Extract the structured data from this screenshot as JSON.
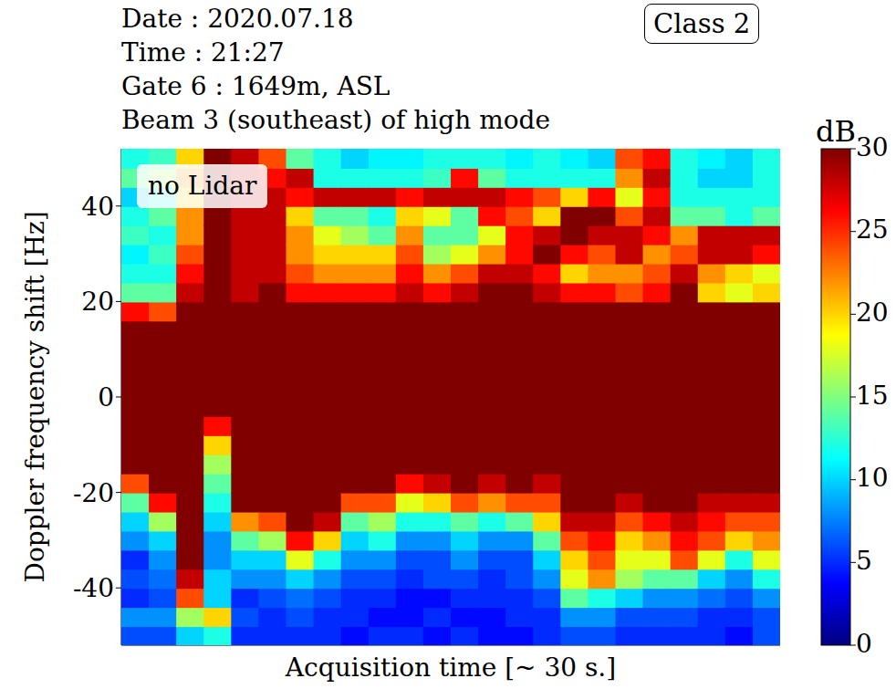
{
  "chart_data": {
    "type": "heatmap",
    "title_lines": [
      "Date : 2020.07.18",
      "Time : 21:27",
      "Gate 6 : 1649m, ASL",
      "Beam 3 (southeast) of high mode"
    ],
    "badge": "Class 2",
    "annotation": "no Lidar",
    "x_label": "Acquisition time [~ 30 s.]",
    "y_label": "Doppler frequency shift [Hz]",
    "xlim": [
      0,
      30
    ],
    "ylim": [
      -52,
      52
    ],
    "yticks": [
      -40,
      -20,
      0,
      20,
      40
    ],
    "tick_labels": "y",
    "x": [
      0.625,
      1.875,
      3.125,
      4.375,
      5.625,
      6.875,
      8.125,
      9.375,
      10.625,
      11.875,
      13.125,
      14.375,
      15.625,
      16.875,
      18.125,
      19.375,
      20.625,
      21.875,
      23.125,
      24.375,
      25.625,
      26.875,
      28.125,
      29.375
    ],
    "y": [
      -50,
      -46,
      -42,
      -38,
      -34,
      -30,
      -26,
      -22,
      -18,
      -14,
      -10,
      -6,
      -2,
      2,
      6,
      10,
      14,
      18,
      22,
      26,
      30,
      34,
      38,
      42,
      46,
      50
    ],
    "cells": [
      [
        6,
        8,
        5,
        6,
        5,
        8,
        10,
        14,
        24,
        30,
        30,
        30,
        30,
        30,
        30,
        30,
        30,
        26,
        14,
        12,
        11,
        13,
        12,
        10,
        14,
        12
      ],
      [
        6,
        8,
        6,
        7,
        8,
        10,
        16,
        26,
        30,
        30,
        30,
        30,
        30,
        30,
        30,
        30,
        30,
        24,
        14,
        12,
        13,
        12,
        14,
        12,
        16,
        13
      ],
      [
        10,
        16,
        24,
        28,
        30,
        30,
        30,
        30,
        30,
        30,
        30,
        30,
        30,
        30,
        30,
        30,
        30,
        30,
        28,
        26,
        24,
        22,
        22,
        20,
        22,
        20
      ],
      [
        12,
        20,
        10,
        10,
        8,
        8,
        10,
        12,
        14,
        16,
        20,
        26,
        30,
        30,
        30,
        30,
        30,
        30,
        30,
        30,
        30,
        30,
        30,
        30,
        30,
        30
      ],
      [
        5,
        6,
        5,
        8,
        10,
        14,
        22,
        30,
        30,
        30,
        30,
        30,
        30,
        30,
        30,
        30,
        30,
        30,
        28,
        28,
        28,
        28,
        28,
        28,
        28,
        28
      ],
      [
        5,
        5,
        6,
        8,
        10,
        16,
        24,
        30,
        30,
        30,
        30,
        30,
        30,
        30,
        30,
        30,
        30,
        30,
        30,
        28,
        28,
        28,
        28,
        28,
        26,
        24
      ],
      [
        5,
        6,
        7,
        10,
        18,
        26,
        30,
        30,
        30,
        30,
        30,
        30,
        30,
        30,
        30,
        30,
        30,
        30,
        26,
        24,
        22,
        22,
        20,
        26,
        28,
        14
      ],
      [
        5,
        5,
        6,
        8,
        12,
        20,
        28,
        30,
        30,
        30,
        30,
        30,
        30,
        30,
        30,
        30,
        30,
        30,
        26,
        22,
        20,
        18,
        14,
        28,
        12,
        12
      ],
      [
        4,
        5,
        5,
        6,
        8,
        10,
        14,
        24,
        30,
        30,
        30,
        30,
        30,
        30,
        30,
        30,
        30,
        30,
        26,
        22,
        20,
        16,
        14,
        28,
        12,
        10
      ],
      [
        5,
        4,
        5,
        6,
        8,
        12,
        16,
        24,
        30,
        30,
        30,
        30,
        30,
        30,
        30,
        30,
        30,
        30,
        26,
        22,
        20,
        14,
        12,
        28,
        12,
        11
      ],
      [
        5,
        4,
        4,
        5,
        6,
        8,
        12,
        18,
        26,
        30,
        30,
        30,
        30,
        30,
        30,
        30,
        30,
        30,
        28,
        26,
        24,
        22,
        20,
        26,
        12,
        11
      ],
      [
        4,
        5,
        4,
        6,
        6,
        8,
        12,
        20,
        28,
        30,
        30,
        30,
        30,
        30,
        30,
        30,
        30,
        30,
        26,
        22,
        16,
        14,
        18,
        28,
        13,
        12
      ],
      [
        5,
        4,
        5,
        6,
        8,
        10,
        14,
        24,
        30,
        30,
        30,
        30,
        30,
        30,
        30,
        30,
        30,
        30,
        28,
        24,
        18,
        14,
        14,
        28,
        26,
        12
      ],
      [
        4,
        4,
        5,
        5,
        6,
        8,
        12,
        22,
        28,
        30,
        30,
        30,
        30,
        30,
        30,
        30,
        30,
        30,
        30,
        28,
        22,
        18,
        26,
        28,
        14,
        12
      ],
      [
        4,
        5,
        5,
        6,
        6,
        8,
        14,
        24,
        30,
        30,
        30,
        30,
        30,
        30,
        30,
        30,
        30,
        30,
        30,
        28,
        26,
        26,
        24,
        26,
        12,
        11
      ],
      [
        5,
        5,
        6,
        8,
        10,
        14,
        20,
        24,
        28,
        30,
        30,
        30,
        30,
        30,
        30,
        30,
        30,
        30,
        28,
        26,
        30,
        28,
        20,
        24,
        12,
        12
      ],
      [
        6,
        8,
        14,
        18,
        20,
        24,
        28,
        30,
        30,
        30,
        30,
        30,
        30,
        30,
        30,
        30,
        30,
        30,
        26,
        20,
        26,
        30,
        30,
        20,
        12,
        11
      ],
      [
        6,
        8,
        12,
        22,
        24,
        26,
        28,
        30,
        30,
        30,
        30,
        30,
        30,
        30,
        30,
        30,
        30,
        30,
        26,
        22,
        24,
        28,
        30,
        26,
        12,
        10
      ],
      [
        5,
        6,
        10,
        16,
        18,
        20,
        24,
        28,
        30,
        30,
        30,
        30,
        30,
        30,
        30,
        30,
        30,
        30,
        24,
        22,
        28,
        28,
        24,
        18,
        22,
        24
      ],
      [
        5,
        6,
        8,
        14,
        18,
        22,
        26,
        30,
        30,
        30,
        30,
        30,
        30,
        30,
        30,
        30,
        30,
        30,
        26,
        24,
        22,
        26,
        28,
        26,
        28,
        26
      ],
      [
        5,
        6,
        8,
        14,
        24,
        26,
        28,
        30,
        30,
        30,
        30,
        30,
        30,
        30,
        30,
        30,
        30,
        30,
        30,
        28,
        24,
        22,
        14,
        12,
        12,
        12
      ],
      [
        5,
        5,
        7,
        10,
        18,
        24,
        26,
        28,
        30,
        30,
        30,
        30,
        30,
        30,
        30,
        30,
        30,
        30,
        20,
        22,
        28,
        28,
        14,
        12,
        10,
        11
      ],
      [
        4,
        5,
        6,
        8,
        12,
        20,
        24,
        28,
        30,
        30,
        30,
        30,
        30,
        30,
        30,
        30,
        30,
        30,
        18,
        20,
        28,
        28,
        12,
        12,
        10,
        10
      ],
      [
        6,
        6,
        8,
        12,
        18,
        22,
        24,
        28,
        30,
        30,
        30,
        30,
        30,
        30,
        30,
        30,
        30,
        30,
        20,
        18,
        26,
        28,
        14,
        12,
        12,
        12
      ]
    ],
    "colorbar": {
      "label": "dB",
      "range": [
        0,
        30
      ],
      "ticks": [
        0,
        5,
        10,
        15,
        20,
        25,
        30
      ]
    }
  }
}
